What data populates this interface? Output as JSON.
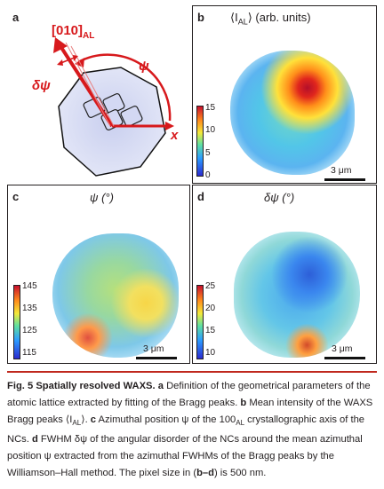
{
  "figure": {
    "panel_a": {
      "label": "a",
      "axis_label": "[010]",
      "axis_subscript": "AL",
      "psi_label": "ψ",
      "dpsi_label": "δψ",
      "x_label": "x"
    },
    "panel_b": {
      "label": "b",
      "title_pre": "⟨I",
      "title_sub": "AL",
      "title_post": "⟩ (arb. units)",
      "colorbar_ticks": [
        "15",
        "10",
        "5",
        "0"
      ],
      "scale_label": "3 μm"
    },
    "panel_c": {
      "label": "c",
      "title": "ψ (°)",
      "colorbar_ticks": [
        "145",
        "135",
        "125",
        "115"
      ],
      "scale_label": "3 μm"
    },
    "panel_d": {
      "label": "d",
      "title": "δψ (°)",
      "colorbar_ticks": [
        "25",
        "20",
        "15",
        "10"
      ],
      "scale_label": "3 μm"
    }
  },
  "caption": {
    "fig_label": "Fig. 5 Spatially resolved WAXS.",
    "a_label": "a",
    "a_text": " Definition of the geometrical parameters of the atomic lattice extracted by fitting of the Bragg peaks.",
    "b_label": "b",
    "b_text_pre": " Mean intensity of the WAXS Bragg peaks ⟨I",
    "b_sub": "AL",
    "b_text_post": "⟩.",
    "c_label": "c",
    "c_text_pre": " Azimuthal position ψ of the 100",
    "c_sub": "AL",
    "c_text_post": " crystallographic axis of the NCs.",
    "d_label": "d",
    "d_text": " FWHM δψ of the angular disorder of the NCs around the mean azimuthal position ψ extracted from the azimuthal FWHMs of the Bragg peaks by the Williamson–Hall method. The pixel size in (",
    "bd_label": "b–d",
    "d_text_end": ") is 500 nm."
  },
  "colors": {
    "accent_red": "#d7191c",
    "caption_rule": "#c0281d"
  }
}
